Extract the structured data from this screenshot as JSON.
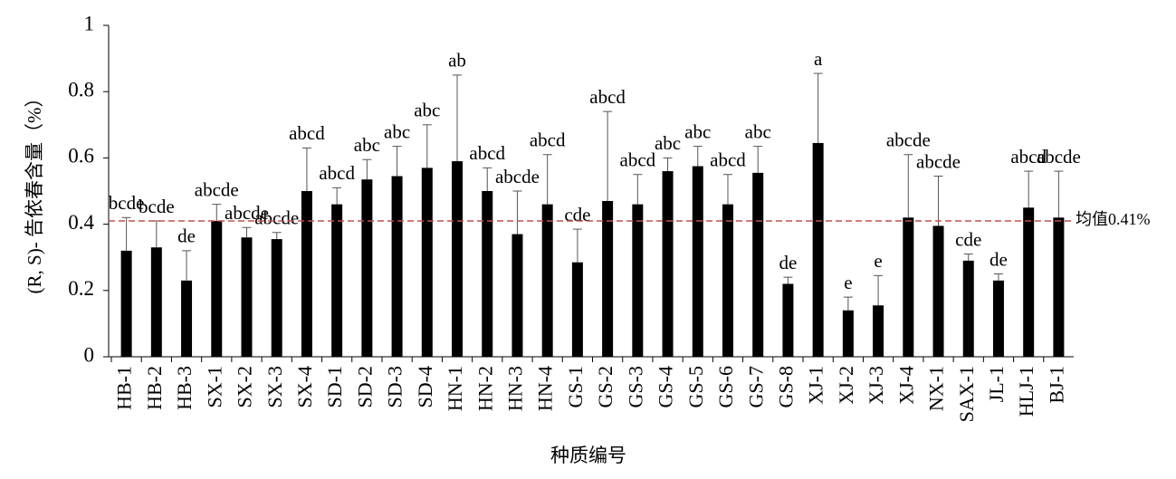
{
  "chart_data": {
    "type": "bar",
    "ylabel": "(R, S)- 告依春含量（%）",
    "xlabel": "种质编号",
    "categories": [
      "HB-1",
      "HB-2",
      "HB-3",
      "SX-1",
      "SX-2",
      "SX-3",
      "SX-4",
      "SD-1",
      "SD-2",
      "SD-3",
      "SD-4",
      "HN-1",
      "HN-2",
      "HN-3",
      "HN-4",
      "GS-1",
      "GS-2",
      "GS-3",
      "GS-4",
      "GS-5",
      "GS-6",
      "GS-7",
      "GS-8",
      "XJ-1",
      "XJ-2",
      "XJ-3",
      "XJ-4",
      "NX-1",
      "SAX-1",
      "JL-1",
      "HLJ-1",
      "BJ-1"
    ],
    "values": [
      0.32,
      0.33,
      0.23,
      0.41,
      0.36,
      0.355,
      0.5,
      0.46,
      0.535,
      0.545,
      0.57,
      0.59,
      0.5,
      0.37,
      0.46,
      0.285,
      0.47,
      0.46,
      0.56,
      0.575,
      0.46,
      0.555,
      0.22,
      0.645,
      0.14,
      0.155,
      0.42,
      0.395,
      0.29,
      0.23,
      0.45,
      0.42
    ],
    "errors": [
      0.1,
      0.08,
      0.09,
      0.05,
      0.03,
      0.02,
      0.13,
      0.05,
      0.06,
      0.09,
      0.13,
      0.26,
      0.07,
      0.13,
      0.15,
      0.1,
      0.27,
      0.09,
      0.04,
      0.06,
      0.09,
      0.08,
      0.02,
      0.21,
      0.04,
      0.09,
      0.19,
      0.15,
      0.02,
      0.02,
      0.11,
      0.14
    ],
    "letters": [
      "bcde",
      "bcde",
      "de",
      "abcde",
      "abcde",
      "abcde",
      "abcd",
      "abcd",
      "abc",
      "abc",
      "abc",
      "ab",
      "abcd",
      "abcde",
      "abcd",
      "cde",
      "abcd",
      "abcd",
      "abc",
      "abc",
      "abcd",
      "abc",
      "de",
      "a",
      "e",
      "e",
      "abcde",
      "abcde",
      "cde",
      "de",
      "abcd",
      "abcde"
    ],
    "color": "#000000",
    "mean_line": {
      "value": 0.41,
      "label": "均值0.41%",
      "color": "#c0504d"
    },
    "ylim": [
      0,
      1
    ],
    "yticks": [
      0,
      0.2,
      0.4,
      0.6,
      0.8,
      1
    ]
  }
}
